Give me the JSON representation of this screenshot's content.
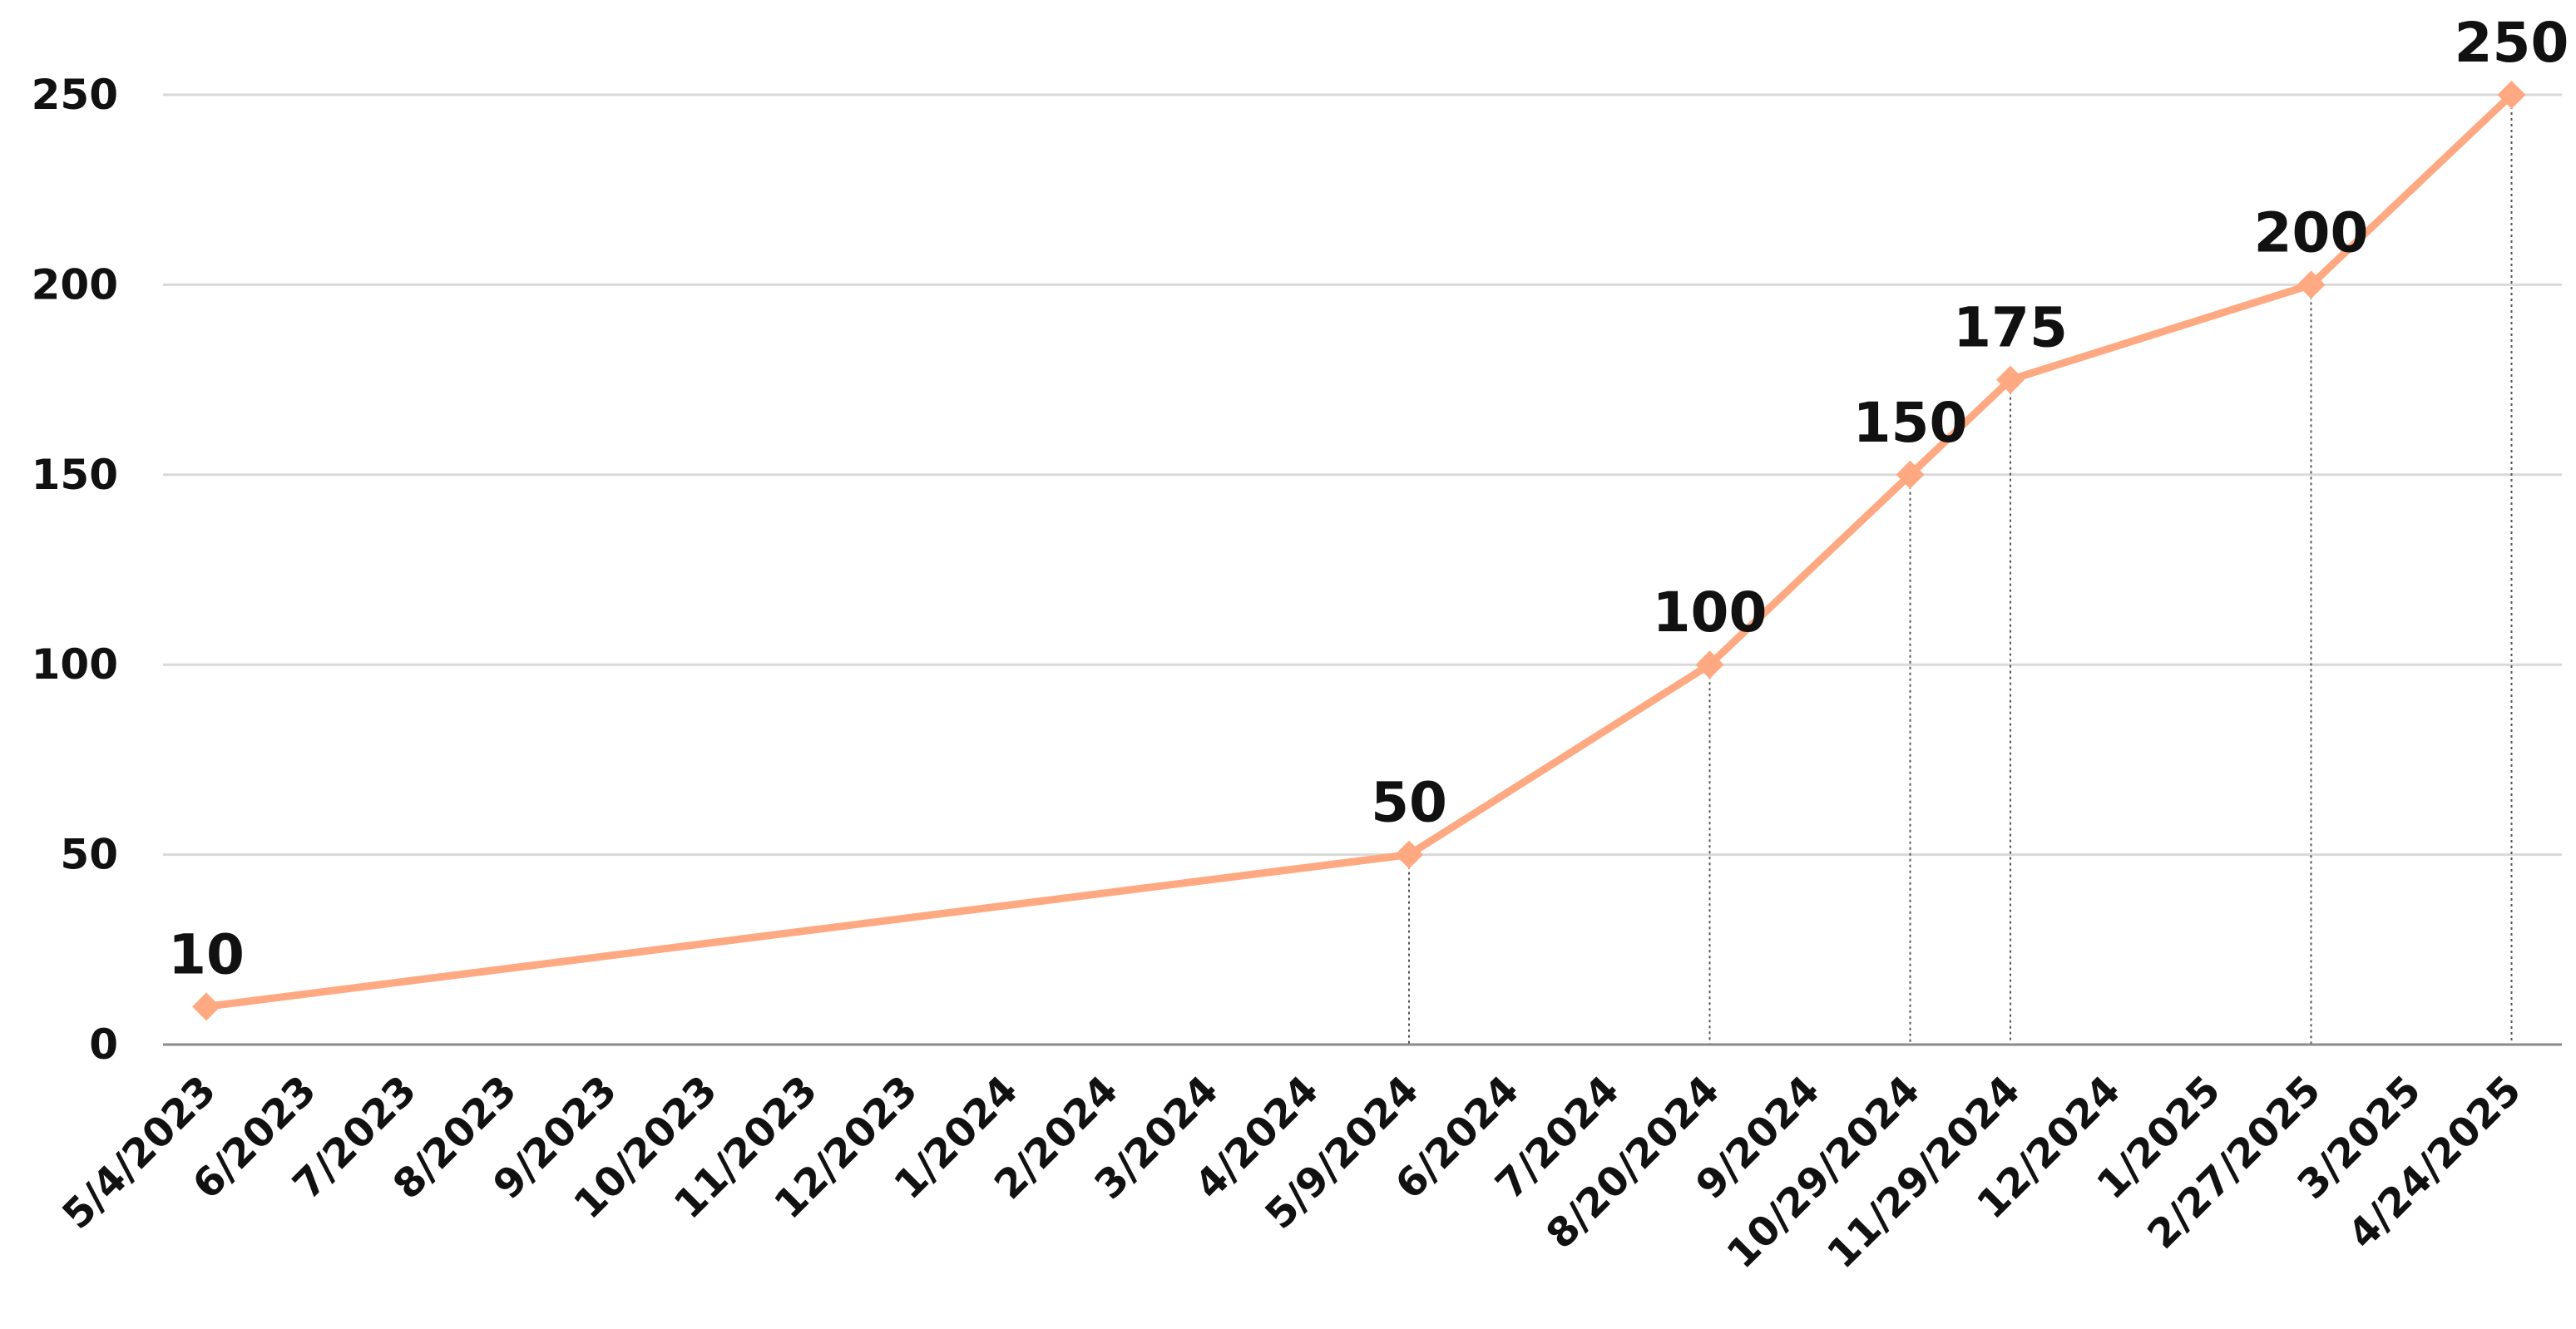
{
  "chart_data": {
    "type": "line",
    "title": "",
    "xlabel": "",
    "ylabel": "",
    "ylim": [
      0,
      250
    ],
    "yticks": [
      0,
      50,
      100,
      150,
      200,
      250
    ],
    "grid": true,
    "legend": "none",
    "x_categories": [
      "5/4/2023",
      "6/2023",
      "7/2023",
      "8/2023",
      "9/2023",
      "10/2023",
      "11/2023",
      "12/2023",
      "1/2024",
      "2/2024",
      "3/2024",
      "4/2024",
      "5/9/2024",
      "6/2024",
      "7/2024",
      "8/20/2024",
      "9/2024",
      "10/29/2024",
      "11/29/2024",
      "12/2024",
      "1/2025",
      "2/27/2025",
      "3/2025",
      "4/24/2025"
    ],
    "series": [
      {
        "color": "#FFA982",
        "points": [
          {
            "x": "2023-05-04",
            "y": 10,
            "label": "10"
          },
          {
            "x": "2024-05-09",
            "y": 50,
            "label": "50"
          },
          {
            "x": "2024-08-20",
            "y": 100,
            "label": "100"
          },
          {
            "x": "2024-10-29",
            "y": 150,
            "label": "150"
          },
          {
            "x": "2024-11-29",
            "y": 175,
            "label": "175"
          },
          {
            "x": "2025-02-27",
            "y": 200,
            "label": "200"
          },
          {
            "x": "2025-04-24",
            "y": 250,
            "label": "250"
          }
        ]
      }
    ],
    "colors": {
      "series": "#FFA982",
      "grid": "#d9d9d9",
      "axis": "#8a8a8a",
      "drop_line": "#555555",
      "text": "#111111"
    }
  }
}
